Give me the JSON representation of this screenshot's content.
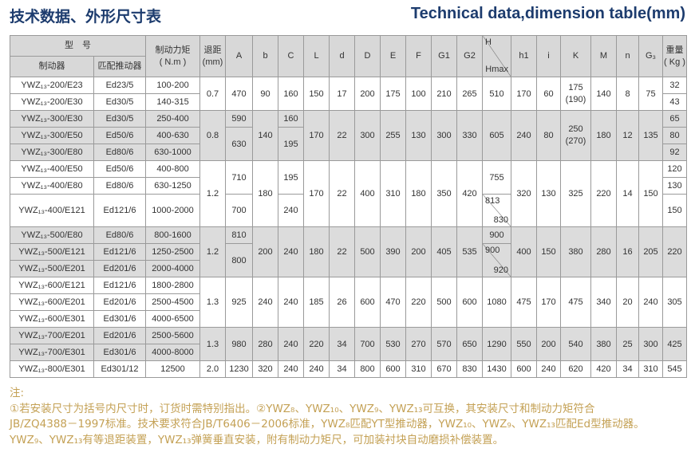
{
  "header": {
    "title_cn": "技术数据、外形尺寸表",
    "title_en": "Technical data,dimension table(mm)"
  },
  "table": {
    "header": [
      [
        "型　号",
        [
          "制动力矩",
          "( N.m )"
        ],
        [
          "退距",
          "(mm)"
        ],
        "A",
        "b",
        "C",
        "L",
        "d",
        "D",
        "E",
        "F",
        "G1",
        "G2",
        [
          "H",
          "Hmax"
        ],
        "h1",
        "i",
        "K",
        "M",
        "n",
        "G₃",
        [
          "重量",
          "( Kg )"
        ]
      ],
      [
        "制动器",
        "匹配推动器"
      ]
    ],
    "rows": [
      [
        "YWZ₁₃-200/E23",
        "Ed23/5",
        "100-200",
        "0.7",
        "470",
        "90",
        "160",
        "150",
        "17",
        "200",
        "175",
        "100",
        "210",
        "265",
        "510",
        "170",
        "60",
        [
          "175",
          "(190)"
        ],
        "140",
        "8",
        "75",
        "32"
      ],
      [
        "YWZ₁₃-200/E30",
        "Ed30/5",
        "140-315",
        "43"
      ],
      [
        "YWZ₁₃-300/E30",
        "Ed30/5",
        "250-400",
        "0.8",
        "590",
        "140",
        "160",
        "170",
        "22",
        "300",
        "255",
        "130",
        "300",
        "330",
        "605",
        "240",
        "80",
        [
          "250",
          "(270)"
        ],
        "180",
        "12",
        "135",
        "65"
      ],
      [
        "YWZ₁₃-300/E50",
        "Ed50/6",
        "400-630",
        "630",
        "195",
        "80"
      ],
      [
        "YWZ₁₃-300/E80",
        "Ed80/6",
        "630-1000",
        "92"
      ],
      [
        "YWZ₁₃-400/E50",
        "Ed50/6",
        "400-800",
        "1.2",
        "710",
        "180",
        "195",
        "170",
        "22",
        "400",
        "310",
        "180",
        "350",
        "420",
        "755",
        "320",
        "130",
        "325",
        "220",
        "14",
        "150",
        "120"
      ],
      [
        "YWZ₁₃-400/E80",
        "Ed80/6",
        "630-1250",
        "130"
      ],
      [
        "YWZ₁₃-400/E121",
        "Ed121/6",
        "1000-2000",
        "700",
        "240",
        [
          "813",
          "830"
        ],
        "150"
      ],
      [
        "YWZ₁₃-500/E80",
        "Ed80/6",
        "800-1600",
        "1.2",
        "810",
        "200",
        "240",
        "180",
        "22",
        "500",
        "390",
        "200",
        "405",
        "535",
        "900",
        "400",
        "150",
        "380",
        "280",
        "16",
        "205",
        "220"
      ],
      [
        "YWZ₁₃-500/E121",
        "Ed121/6",
        "1250-2500",
        "800",
        [
          "900",
          "920"
        ]
      ],
      [
        "YWZ₁₃-500/E201",
        "Ed201/6",
        "2000-4000"
      ],
      [
        "YWZ₁₃-600/E121",
        "Ed121/6",
        "1800-2800",
        "1.3",
        "925",
        "240",
        "240",
        "185",
        "26",
        "600",
        "470",
        "220",
        "500",
        "600",
        "1080",
        "475",
        "170",
        "475",
        "340",
        "20",
        "240",
        "305"
      ],
      [
        "YWZ₁₃-600/E201",
        "Ed201/6",
        "2500-4500"
      ],
      [
        "YWZ₁₃-600/E301",
        "Ed301/6",
        "4000-6500"
      ],
      [
        "YWZ₁₃-700/E201",
        "Ed201/6",
        "2500-5600",
        "1.3",
        "980",
        "280",
        "240",
        "220",
        "34",
        "700",
        "530",
        "270",
        "570",
        "650",
        "1290",
        "550",
        "200",
        "540",
        "380",
        "25",
        "300",
        "425"
      ],
      [
        "YWZ₁₃-700/E301",
        "Ed301/6",
        "4000-8000"
      ],
      [
        "YWZ₁₃-800/E301",
        "Ed301/12",
        "12500",
        "2.0",
        "1230",
        "320",
        "240",
        "240",
        "34",
        "800",
        "600",
        "310",
        "670",
        "830",
        "1430",
        "600",
        "240",
        "620",
        "420",
        "34",
        "310",
        "545"
      ]
    ]
  },
  "notes": {
    "label": "注:",
    "lines": [
      "①若安装尺寸为括号内尺寸时，订货时需特别指出。②YWZ₈、YWZ₁₀、YWZ₉、YWZ₁₃可互换，其安装尺寸和制动力矩符合",
      "JB/ZQ4388－1997标准。技术要求符合JB/T6406－2006标准，YWZ₈匹配YT型推动器，YWZ₁₀、YWZ₉、YWZ₁₃匹配Ed型推动器。",
      "YWZ₉、YWZ₁₃有等退距装置，YWZ₁₃弹簧垂直安装，附有制动力矩尺，可加装衬块自动磨损补偿装置。"
    ]
  }
}
